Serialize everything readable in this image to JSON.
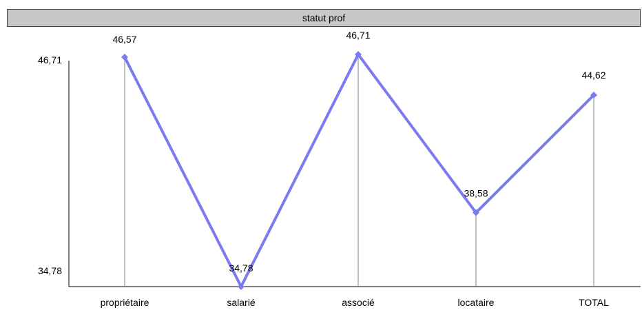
{
  "chart_data": {
    "type": "line",
    "title": "statut prof",
    "categories": [
      "propriétaire",
      "salarié",
      "associé",
      "locataire",
      "TOTAL"
    ],
    "values": [
      46.57,
      34.78,
      46.71,
      38.58,
      44.62
    ],
    "value_labels": [
      "46,57",
      "34,78",
      "46,71",
      "38,58",
      "44,62"
    ],
    "y_tick_labels": [
      "46,71",
      "34,78"
    ],
    "y_ticks": [
      46.71,
      34.78
    ],
    "ylim": [
      34.78,
      46.71
    ],
    "grid": false,
    "drop_lines": true,
    "series_color": "#7b7bef",
    "drop_line_color": "#808080"
  }
}
